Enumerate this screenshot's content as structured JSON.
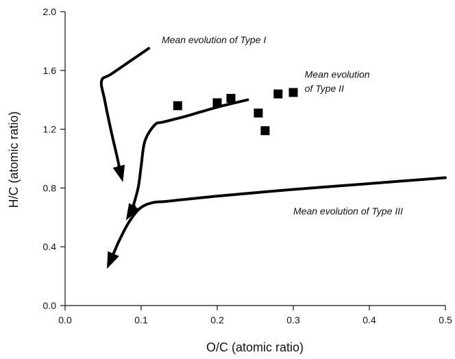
{
  "chart_data": {
    "type": "scatter",
    "xlabel": "O/C (atomic ratio)",
    "ylabel": "H/C (atomic ratio)",
    "xlim": [
      0.0,
      0.5
    ],
    "ylim": [
      0.0,
      2.0
    ],
    "xticks": [
      "0.0",
      "0.1",
      "0.2",
      "0.3",
      "0.4",
      "0.5"
    ],
    "yticks": [
      "0.0",
      "0.4",
      "0.8",
      "1.2",
      "1.6",
      "2.0"
    ],
    "xtick_values": [
      0.0,
      0.1,
      0.2,
      0.3,
      0.4,
      0.5
    ],
    "ytick_values": [
      0.0,
      0.4,
      0.8,
      1.2,
      1.6,
      2.0
    ],
    "grid": false,
    "series": [
      {
        "marker": "square",
        "color": "#000000",
        "points": [
          {
            "x": 0.148,
            "y": 1.36
          },
          {
            "x": 0.2,
            "y": 1.38
          },
          {
            "x": 0.218,
            "y": 1.41
          },
          {
            "x": 0.254,
            "y": 1.31
          },
          {
            "x": 0.263,
            "y": 1.19
          },
          {
            "x": 0.28,
            "y": 1.44
          },
          {
            "x": 0.3,
            "y": 1.45
          }
        ]
      }
    ],
    "curves": [
      {
        "label": "Mean evolution of Type I",
        "color": "#000000",
        "points": [
          [
            0.11,
            1.75
          ],
          [
            0.062,
            1.58
          ],
          [
            0.048,
            1.53
          ],
          [
            0.052,
            1.4
          ],
          [
            0.06,
            1.2
          ],
          [
            0.068,
            1.02
          ],
          [
            0.073,
            0.9
          ]
        ],
        "arrow_end": [
          0.076,
          0.84
        ]
      },
      {
        "label": "Mean evolution of Type II",
        "color": "#000000",
        "points": [
          [
            0.24,
            1.4
          ],
          [
            0.2,
            1.35
          ],
          [
            0.16,
            1.29
          ],
          [
            0.13,
            1.25
          ],
          [
            0.118,
            1.23
          ],
          [
            0.105,
            1.12
          ],
          [
            0.1,
            0.95
          ],
          [
            0.096,
            0.8
          ],
          [
            0.088,
            0.65
          ]
        ],
        "arrow_end": [
          0.08,
          0.58
        ]
      },
      {
        "label": "Mean evolution of Type III",
        "color": "#000000",
        "points": [
          [
            0.5,
            0.87
          ],
          [
            0.4,
            0.83
          ],
          [
            0.3,
            0.79
          ],
          [
            0.2,
            0.745
          ],
          [
            0.135,
            0.71
          ],
          [
            0.115,
            0.7
          ],
          [
            0.098,
            0.66
          ],
          [
            0.083,
            0.56
          ],
          [
            0.07,
            0.43
          ]
        ],
        "arrow_end": [
          0.055,
          0.25
        ]
      }
    ],
    "annotations": [
      {
        "text": "Mean evolution of Type I",
        "x": 0.127,
        "y": 1.785
      },
      {
        "text": "Mean evolution",
        "x": 0.315,
        "y": 1.55
      },
      {
        "text": "of Type II",
        "x": 0.315,
        "y": 1.455
      },
      {
        "text": "Mean evolution of Type III",
        "x": 0.3,
        "y": 0.62
      }
    ]
  }
}
